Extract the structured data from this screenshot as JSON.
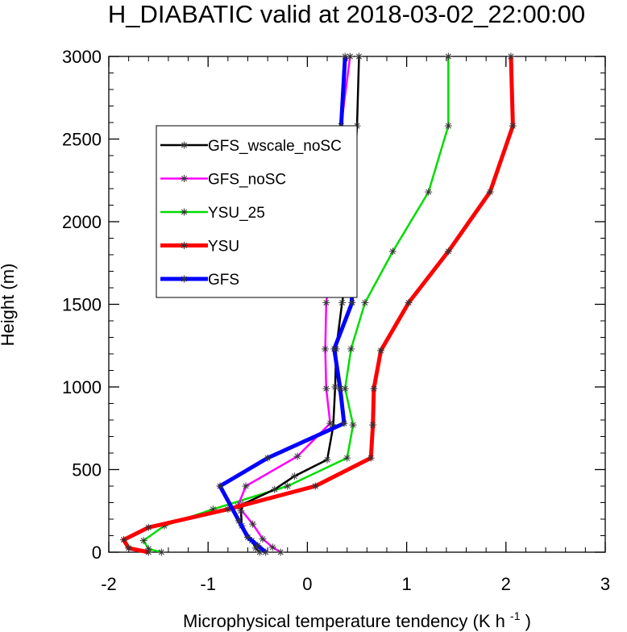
{
  "chart_data": {
    "type": "line",
    "title": "H_DIABATIC valid at 2018-03-02_22:00:00",
    "xlabel": "Microphysical temperature tendency (K h",
    "xlabel_sup": "-1",
    "xlabel_end": ")",
    "ylabel": "Height (m)",
    "xlim": [
      -2,
      3
    ],
    "ylim": [
      0,
      3000
    ],
    "xticks": [
      "-2",
      "-1",
      "0",
      "1",
      "2",
      "3"
    ],
    "yticks": [
      "0",
      "500",
      "1000",
      "1500",
      "2000",
      "2500",
      "3000"
    ],
    "legend_position": "top-left",
    "series": [
      {
        "name": "GFS_wscale_noSC",
        "color": "#000000",
        "width": 2.5,
        "x": [
          -0.48,
          -0.52,
          -0.56,
          -0.66,
          -0.67,
          -0.65,
          -0.33,
          -0.13,
          0.2,
          0.26,
          0.28,
          0.29,
          0.35,
          0.43,
          0.46,
          0.5,
          0.52
        ],
        "y": [
          0,
          25,
          70,
          160,
          250,
          290,
          380,
          460,
          560,
          760,
          1000,
          1230,
          1510,
          1820,
          2180,
          2580,
          3000
        ]
      },
      {
        "name": "GFS_noSC",
        "color": "#ff00ff",
        "width": 2.5,
        "x": [
          -0.27,
          -0.35,
          -0.45,
          -0.55,
          -0.7,
          -0.62,
          -0.1,
          0.23,
          0.19,
          0.18,
          0.19,
          0.26,
          0.3,
          0.34,
          0.43
        ],
        "y": [
          0,
          30,
          80,
          170,
          280,
          400,
          580,
          780,
          990,
          1230,
          1510,
          1830,
          2180,
          2580,
          3000
        ]
      },
      {
        "name": "YSU_25",
        "color": "#00dd00",
        "width": 2.5,
        "x": [
          -1.47,
          -1.6,
          -1.65,
          -1.44,
          -0.95,
          -0.2,
          0.4,
          0.46,
          0.38,
          0.44,
          0.58,
          0.86,
          1.22,
          1.42,
          1.42
        ],
        "y": [
          0,
          20,
          70,
          160,
          260,
          400,
          570,
          770,
          990,
          1230,
          1510,
          1820,
          2180,
          2580,
          3000
        ]
      },
      {
        "name": "YSU",
        "color": "#ff0000",
        "width": 5,
        "x": [
          -1.6,
          -1.8,
          -1.85,
          -1.6,
          -0.8,
          0.08,
          0.64,
          0.66,
          0.67,
          0.74,
          1.02,
          1.42,
          1.84,
          2.07,
          2.05
        ],
        "y": [
          0,
          25,
          75,
          150,
          260,
          400,
          570,
          770,
          990,
          1220,
          1510,
          1820,
          2180,
          2580,
          3000
        ]
      },
      {
        "name": "GFS",
        "color": "#0000ff",
        "width": 5,
        "x": [
          -0.42,
          -0.5,
          -0.6,
          -0.69,
          -0.88,
          -0.4,
          0.37,
          0.33,
          0.27,
          0.45,
          0.42,
          0.31,
          0.34,
          0.38
        ],
        "y": [
          0,
          40,
          90,
          190,
          400,
          570,
          780,
          990,
          1230,
          1510,
          1820,
          2180,
          2580,
          3000
        ]
      }
    ]
  }
}
